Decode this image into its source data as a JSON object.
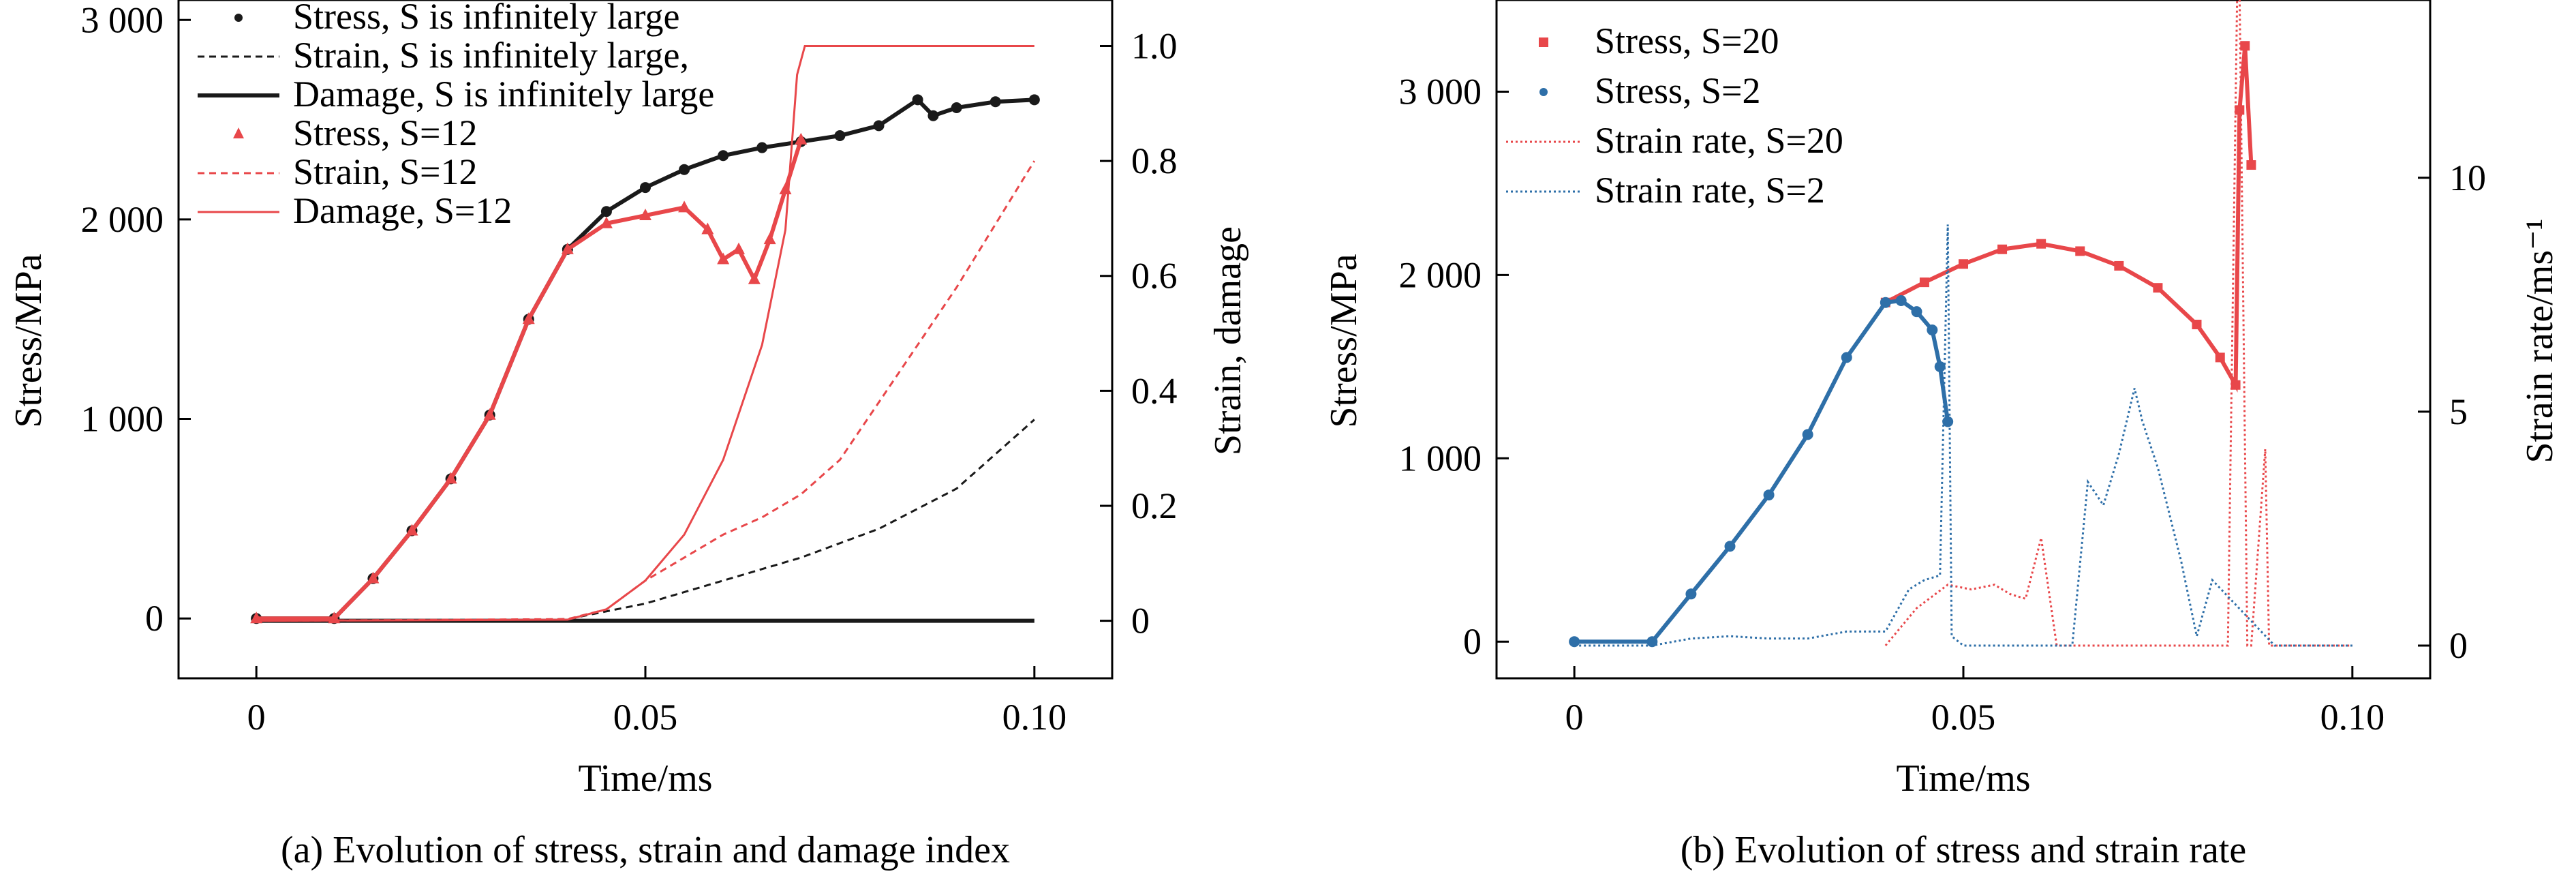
{
  "chart_data": [
    {
      "type": "line",
      "caption": "(a) Evolution of stress, strain and damage index",
      "xlabel": "Time/ms",
      "ylabel": "Stress/MPa",
      "ylabel_right": "Strain, damage",
      "xlim": [
        -0.01,
        0.11
      ],
      "ylim": [
        -300,
        3100
      ],
      "ylim_right": [
        -0.1,
        1.08
      ],
      "x_ticks": [
        {
          "value": 0,
          "label": "0"
        },
        {
          "value": 0.05,
          "label": "0.05"
        },
        {
          "value": 0.1,
          "label": "0.10"
        }
      ],
      "y_ticks": [
        {
          "value": 0,
          "label": "0"
        },
        {
          "value": 1000,
          "label": "1 000"
        },
        {
          "value": 2000,
          "label": "2 000"
        },
        {
          "value": 3000,
          "label": "3 000"
        }
      ],
      "y_right_ticks": [
        {
          "value": 0,
          "label": "0"
        },
        {
          "value": 0.2,
          "label": "0.2"
        },
        {
          "value": 0.4,
          "label": "0.4"
        },
        {
          "value": 0.6,
          "label": "0.6"
        },
        {
          "value": 0.8,
          "label": "0.8"
        },
        {
          "value": 1.0,
          "label": "1.0"
        }
      ],
      "legend_position": "top-left",
      "series": [
        {
          "name": "Stress, S is infinitely large",
          "axis": "left",
          "style": "dots",
          "color": "#1a1a1a",
          "x": [
            0,
            0.01,
            0.015,
            0.02,
            0.025,
            0.03,
            0.035,
            0.04,
            0.045,
            0.05,
            0.055,
            0.06,
            0.065,
            0.07,
            0.075,
            0.08,
            0.085,
            0.087,
            0.09,
            0.095,
            0.1
          ],
          "y": [
            0,
            0,
            200,
            440,
            700,
            1020,
            1500,
            1850,
            2040,
            2160,
            2250,
            2320,
            2360,
            2390,
            2420,
            2470,
            2600,
            2520,
            2560,
            2590,
            2600
          ]
        },
        {
          "name": "Strain, S is infinitely large,",
          "axis": "right",
          "style": "dashed",
          "color": "#1a1a1a",
          "x": [
            0,
            0.03,
            0.04,
            0.05,
            0.06,
            0.07,
            0.08,
            0.09,
            0.1
          ],
          "y": [
            0,
            0,
            0.003,
            0.03,
            0.07,
            0.11,
            0.16,
            0.23,
            0.35
          ]
        },
        {
          "name": "Damage, S is infinitely large",
          "axis": "right",
          "style": "solid-thick",
          "color": "#1a1a1a",
          "x": [
            0,
            0.1
          ],
          "y": [
            0,
            0
          ]
        },
        {
          "name": "Stress, S=12",
          "axis": "left",
          "style": "triangles",
          "color": "#e8474a",
          "x": [
            0,
            0.01,
            0.015,
            0.02,
            0.025,
            0.03,
            0.035,
            0.04,
            0.045,
            0.05,
            0.055,
            0.058,
            0.06,
            0.062,
            0.064,
            0.066,
            0.068,
            0.07
          ],
          "y": [
            0,
            0,
            200,
            440,
            700,
            1020,
            1500,
            1850,
            1980,
            2020,
            2060,
            1950,
            1800,
            1850,
            1700,
            1900,
            2150,
            2400
          ]
        },
        {
          "name": "Strain, S=12",
          "axis": "right",
          "style": "dashed",
          "color": "#e8474a",
          "x": [
            0,
            0.04,
            0.045,
            0.05,
            0.055,
            0.06,
            0.065,
            0.07,
            0.075,
            0.08,
            0.085,
            0.09,
            0.095,
            0.1
          ],
          "y": [
            0,
            0.003,
            0.02,
            0.07,
            0.11,
            0.15,
            0.18,
            0.22,
            0.28,
            0.38,
            0.48,
            0.58,
            0.69,
            0.8
          ]
        },
        {
          "name": "Damage, S=12",
          "axis": "right",
          "style": "solid",
          "color": "#e8474a",
          "x": [
            0,
            0.04,
            0.045,
            0.05,
            0.055,
            0.06,
            0.065,
            0.068,
            0.0695,
            0.0705,
            0.1
          ],
          "y": [
            0,
            0.002,
            0.02,
            0.07,
            0.15,
            0.28,
            0.48,
            0.68,
            0.95,
            1.0,
            1.0
          ]
        }
      ]
    },
    {
      "type": "line",
      "caption": "(b) Evolution of stress and strain rate",
      "xlabel": "Time/ms",
      "ylabel": "Stress/MPa",
      "ylabel_right": "Strain rate/ms⁻¹",
      "xlim": [
        -0.01,
        0.11
      ],
      "ylim": [
        -200,
        3500
      ],
      "ylim_right": [
        -0.7,
        13.8
      ],
      "x_ticks": [
        {
          "value": 0,
          "label": "0"
        },
        {
          "value": 0.05,
          "label": "0.05"
        },
        {
          "value": 0.1,
          "label": "0.10"
        }
      ],
      "y_ticks": [
        {
          "value": 0,
          "label": "0"
        },
        {
          "value": 1000,
          "label": "1 000"
        },
        {
          "value": 2000,
          "label": "2 000"
        },
        {
          "value": 3000,
          "label": "3 000"
        }
      ],
      "y_right_ticks": [
        {
          "value": 0,
          "label": "0"
        },
        {
          "value": 5,
          "label": "5"
        },
        {
          "value": 10,
          "label": "10"
        }
      ],
      "legend_position": "top-left",
      "series": [
        {
          "name": "Stress, S=20",
          "axis": "left",
          "style": "squares",
          "color": "#e8474a",
          "x": [
            0.04,
            0.045,
            0.05,
            0.055,
            0.06,
            0.065,
            0.07,
            0.075,
            0.08,
            0.083,
            0.085,
            0.0855,
            0.0862,
            0.087
          ],
          "y": [
            1850,
            1960,
            2060,
            2140,
            2170,
            2130,
            2050,
            1930,
            1730,
            1550,
            1400,
            2900,
            3250,
            2600
          ]
        },
        {
          "name": "Stress, S=2",
          "axis": "left",
          "style": "dots",
          "color": "#2e6fa8",
          "x": [
            0,
            0.01,
            0.015,
            0.02,
            0.025,
            0.03,
            0.035,
            0.04,
            0.042,
            0.044,
            0.046,
            0.047,
            0.048
          ],
          "y": [
            0,
            0,
            260,
            520,
            800,
            1130,
            1550,
            1850,
            1860,
            1800,
            1700,
            1500,
            1200
          ]
        },
        {
          "name": "Strain rate, S=20",
          "axis": "right",
          "style": "dotted",
          "color": "#e8474a",
          "x": [
            0.04,
            0.044,
            0.048,
            0.051,
            0.054,
            0.056,
            0.058,
            0.06,
            0.062,
            0.07,
            0.08,
            0.084,
            0.0852,
            0.0855,
            0.0865,
            0.087,
            0.0888,
            0.0893,
            0.092,
            0.1
          ],
          "y": [
            0,
            0.8,
            1.3,
            1.2,
            1.3,
            1.1,
            1.0,
            2.3,
            0,
            0,
            0,
            0,
            14,
            14,
            0,
            0,
            4.2,
            0,
            0,
            0
          ]
        },
        {
          "name": "Strain rate, S=2",
          "axis": "right",
          "style": "dotted",
          "color": "#2e6fa8",
          "x": [
            0,
            0.01,
            0.015,
            0.02,
            0.025,
            0.03,
            0.035,
            0.04,
            0.043,
            0.045,
            0.047,
            0.048,
            0.0485,
            0.05,
            0.064,
            0.066,
            0.068,
            0.07,
            0.072,
            0.073,
            0.075,
            0.078,
            0.08,
            0.082,
            0.09,
            0.1
          ],
          "y": [
            0,
            0,
            0.15,
            0.2,
            0.15,
            0.15,
            0.3,
            0.3,
            1.2,
            1.4,
            1.5,
            9.0,
            0.2,
            0,
            0,
            3.5,
            3.0,
            4.1,
            5.5,
            4.8,
            3.8,
            1.8,
            0.2,
            1.4,
            0,
            0
          ]
        }
      ]
    }
  ]
}
